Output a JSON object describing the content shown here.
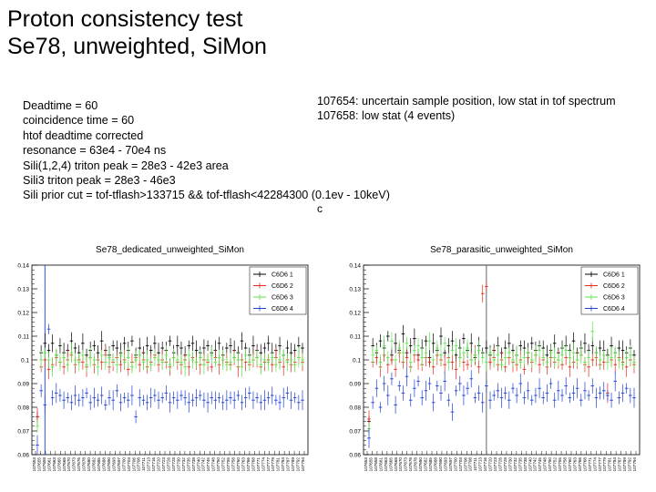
{
  "slide": {
    "title_line1": "Proton consistency test",
    "title_line2": "Se78, unweighted, SiMon",
    "notes": [
      "Deadtime = 60",
      "coincidence time = 60",
      "htof deadtime corrected",
      "resonance = 63e4 - 70e4 ns",
      "Sili(1,2,4) triton peak = 28e3 - 42e3 area",
      "Sili3 triton peak = 28e3 - 46e3",
      "Sili prior cut = tof-tflash>133715 && tof-tflash<42284300 (0.1ev - 10keV)"
    ],
    "notes_right": [
      "107654: uncertain sample position, low stat in tof spectrum",
      "107658: low stat (4 events)"
    ],
    "stray_char": "c"
  },
  "colors": {
    "C6D6 1": "#000000",
    "C6D6 2": "#e8291c",
    "C6D6 3": "#58e84a",
    "C6D6 4": "#1f3fd0"
  },
  "chart_data": [
    {
      "type": "scatter",
      "title": "Se78_dedicated_unweighted_SiMon",
      "xlabel": "",
      "ylabel": "",
      "ylim": [
        0.06,
        0.14
      ],
      "yticks": [
        "0.06",
        "0.07",
        "0.08",
        "0.09",
        "0.1",
        "0.11",
        "0.12",
        "0.13",
        "0.14"
      ],
      "categories": [
        "107653",
        "107656",
        "107658",
        "107660",
        "107662",
        "107664",
        "107666",
        "107668",
        "107670",
        "107672",
        "107674",
        "107676",
        "107678",
        "107680",
        "107682",
        "107684",
        "107686",
        "107688",
        "107690",
        "107692",
        "107694",
        "107696",
        "107698",
        "107700",
        "107702",
        "107704",
        "107706",
        "107708",
        "107710",
        "107712",
        "107714",
        "107716",
        "107718",
        "107720",
        "107722",
        "107724",
        "107726",
        "107728",
        "107730",
        "107732",
        "107734",
        "107736",
        "107738",
        "107740",
        "107742",
        "107744",
        "107746",
        "107748",
        "107750",
        "107752",
        "107754",
        "107756",
        "107758",
        "107760",
        "107762",
        "107764",
        "107766",
        "107768",
        "107770",
        "107772",
        "107774",
        "107776",
        "107778",
        "107780",
        "107782",
        "107784",
        "107786",
        "107788",
        "107790",
        "107792",
        "107794"
      ],
      "tick_labels": [
        "107653",
        "107655",
        "107658",
        "107661",
        "107663",
        "107665",
        "107668",
        "107670",
        "107673",
        "107676",
        "107678",
        "107680",
        "107682",
        "107685",
        "107688",
        "107690",
        "107693",
        "107697",
        "107700",
        "107703",
        "107706",
        "107708",
        "107711",
        "107713",
        "107716",
        "107720",
        "107723",
        "107726",
        "107728",
        "107730",
        "107732",
        "107735",
        "107738",
        "107740",
        "107742",
        "107745",
        "107748",
        "107750",
        "107752",
        "107755",
        "107758",
        "107760",
        "107763",
        "107766",
        "107768",
        "107771",
        "107774",
        "107777",
        "107779",
        "107781",
        "107784",
        "107787",
        "107789",
        "107792",
        "107794"
      ],
      "legend": [
        "C6D6 1",
        "C6D6 2",
        "C6D6 3",
        "C6D6 4"
      ],
      "legend_position": "top-right",
      "series": [
        {
          "name": "C6D6 1",
          "values": [
            0.076,
            0.103,
            0.107,
            0.104,
            0.107,
            0.102,
            0.106,
            0.103,
            0.104,
            0.108,
            0.105,
            0.103,
            0.107,
            0.102,
            0.104,
            0.106,
            0.103,
            0.108,
            0.104,
            0.102,
            0.106,
            0.105,
            0.103,
            0.107,
            0.104,
            0.108,
            0.102,
            0.105,
            0.103,
            0.106,
            0.104,
            0.107,
            0.103,
            0.105,
            0.104,
            0.108,
            0.103,
            0.106,
            0.105,
            0.102,
            0.106,
            0.107,
            0.104,
            0.103,
            0.105,
            0.106,
            0.103,
            0.104,
            0.107,
            0.102,
            0.105,
            0.106,
            0.104,
            0.103,
            0.108,
            0.105,
            0.102,
            0.106,
            0.104,
            0.103,
            0.105,
            0.107,
            0.103,
            0.104,
            0.106,
            0.102,
            0.105,
            0.103,
            0.104,
            0.106,
            0.105
          ]
        },
        {
          "name": "C6D6 2",
          "values": [
            0.076,
            0.097,
            0.1,
            0.096,
            0.098,
            0.101,
            0.099,
            0.097,
            0.1,
            0.102,
            0.098,
            0.1,
            0.099,
            0.097,
            0.101,
            0.098,
            0.1,
            0.099,
            0.102,
            0.097,
            0.099,
            0.101,
            0.098,
            0.1,
            0.096,
            0.099,
            0.101,
            0.098,
            0.1,
            0.097,
            0.099,
            0.102,
            0.098,
            0.1,
            0.099,
            0.097,
            0.101,
            0.099,
            0.098,
            0.1,
            0.097,
            0.101,
            0.099,
            0.098,
            0.1,
            0.099,
            0.097,
            0.101,
            0.098,
            0.1,
            0.099,
            0.098,
            0.101,
            0.097,
            0.1,
            0.099,
            0.098,
            0.1,
            0.101,
            0.097,
            0.099,
            0.1,
            0.098,
            0.101,
            0.099,
            0.097,
            0.1,
            0.098,
            0.099,
            0.101,
            0.099
          ]
        },
        {
          "name": "C6D6 3",
          "values": [
            0.072,
            0.1,
            0.103,
            0.1,
            0.097,
            0.102,
            0.099,
            0.101,
            0.098,
            0.103,
            0.1,
            0.099,
            0.102,
            0.098,
            0.101,
            0.1,
            0.097,
            0.102,
            0.099,
            0.101,
            0.1,
            0.098,
            0.102,
            0.099,
            0.101,
            0.097,
            0.1,
            0.102,
            0.099,
            0.1,
            0.098,
            0.101,
            0.1,
            0.099,
            0.102,
            0.098,
            0.101,
            0.1,
            0.099,
            0.097,
            0.102,
            0.1,
            0.099,
            0.101,
            0.098,
            0.1,
            0.102,
            0.099,
            0.101,
            0.1,
            0.098,
            0.099,
            0.101,
            0.1,
            0.097,
            0.102,
            0.099,
            0.1,
            0.101,
            0.098,
            0.1,
            0.099,
            0.101,
            0.098,
            0.1,
            0.102,
            0.099,
            0.1,
            0.098,
            0.101,
            0.1
          ]
        },
        {
          "name": "C6D6 4",
          "values": [
            0.064,
            0.087,
            0.081,
            0.113,
            0.084,
            0.086,
            0.085,
            0.083,
            0.084,
            0.082,
            0.085,
            0.083,
            0.084,
            0.086,
            0.082,
            0.084,
            0.083,
            0.085,
            0.081,
            0.084,
            0.083,
            0.087,
            0.082,
            0.084,
            0.083,
            0.085,
            0.076,
            0.084,
            0.083,
            0.082,
            0.084,
            0.085,
            0.083,
            0.084,
            0.086,
            0.082,
            0.084,
            0.083,
            0.085,
            0.084,
            0.082,
            0.083,
            0.084,
            0.085,
            0.083,
            0.082,
            0.084,
            0.083,
            0.084,
            0.082,
            0.083,
            0.084,
            0.083,
            0.085,
            0.082,
            0.084,
            0.086,
            0.083,
            0.084,
            0.082,
            0.083,
            0.084,
            0.085,
            0.083,
            0.082,
            0.084,
            0.086,
            0.083,
            0.084,
            0.082,
            0.083
          ]
        }
      ],
      "marker_at": "107658"
    },
    {
      "type": "scatter",
      "title": "Se78_parasitic_unweighted_SiMon",
      "xlabel": "",
      "ylabel": "",
      "ylim": [
        0.06,
        0.14
      ],
      "yticks": [
        "0.06",
        "0.07",
        "0.08",
        "0.09",
        "0.1",
        "0.11",
        "0.12",
        "0.13",
        "0.14"
      ],
      "categories": [
        "107653",
        "107656",
        "107658",
        "107660",
        "107662",
        "107664",
        "107666",
        "107668",
        "107670",
        "107672",
        "107674",
        "107676",
        "107678",
        "107680",
        "107682",
        "107684",
        "107686",
        "107688",
        "107690",
        "107692",
        "107694",
        "107696",
        "107698",
        "107700",
        "107702",
        "107704",
        "107706",
        "107708",
        "107710",
        "107712",
        "107714",
        "107716",
        "107718",
        "107720",
        "107722",
        "107724",
        "107726",
        "107728",
        "107730",
        "107732",
        "107734",
        "107736",
        "107738",
        "107740",
        "107742",
        "107744",
        "107746",
        "107748",
        "107750",
        "107752",
        "107754",
        "107756",
        "107758",
        "107760",
        "107762",
        "107764",
        "107766",
        "107768",
        "107770",
        "107772",
        "107774",
        "107776",
        "107778",
        "107780",
        "107782",
        "107784",
        "107786",
        "107788",
        "107790",
        "107792",
        "107794"
      ],
      "tick_labels": [
        "107653",
        "107655",
        "107658",
        "107661",
        "107663",
        "107665",
        "107668",
        "107670",
        "107673",
        "107676",
        "107678",
        "107680",
        "107682",
        "107685",
        "107688",
        "107690",
        "107693",
        "107697",
        "107700",
        "107703",
        "107706",
        "107708",
        "107711",
        "107713",
        "107716",
        "107720",
        "107723",
        "107726",
        "107728",
        "107730",
        "107732",
        "107735",
        "107738",
        "107740",
        "107742",
        "107745",
        "107748",
        "107750",
        "107752",
        "107755",
        "107758",
        "107760",
        "107763",
        "107766",
        "107768",
        "107771",
        "107774",
        "107777",
        "107779",
        "107781",
        "107784",
        "107787",
        "107789",
        "107792",
        "107794"
      ],
      "legend": [
        "C6D6 1",
        "C6D6 2",
        "C6D6 3",
        "C6D6 4"
      ],
      "legend_position": "top-right",
      "series": [
        {
          "name": "C6D6 1",
          "values": [
            0.074,
            0.106,
            0.103,
            0.108,
            0.105,
            0.11,
            0.102,
            0.107,
            0.104,
            0.111,
            0.103,
            0.106,
            0.109,
            0.102,
            0.105,
            0.108,
            0.101,
            0.107,
            0.104,
            0.11,
            0.103,
            0.106,
            0.108,
            0.102,
            0.105,
            0.109,
            0.104,
            0.107,
            0.101,
            0.106,
            0.103,
            0.105,
            0.102,
            0.104,
            0.106,
            0.103,
            0.105,
            0.107,
            0.104,
            0.102,
            0.106,
            0.105,
            0.103,
            0.107,
            0.104,
            0.106,
            0.105,
            0.102,
            0.104,
            0.107,
            0.103,
            0.105,
            0.106,
            0.104,
            0.108,
            0.103,
            0.105,
            0.107,
            0.104,
            0.106,
            0.103,
            0.105,
            0.104,
            0.102,
            0.106,
            0.103,
            0.105,
            0.104,
            0.103,
            0.105,
            0.102
          ]
        },
        {
          "name": "C6D6 2",
          "values": [
            0.075,
            0.099,
            0.101,
            0.097,
            0.102,
            0.098,
            0.1,
            0.096,
            0.103,
            0.099,
            0.101,
            0.097,
            0.102,
            0.1,
            0.098,
            0.101,
            0.099,
            0.097,
            0.102,
            0.1,
            0.098,
            0.101,
            0.099,
            0.096,
            0.101,
            0.099,
            0.098,
            0.1,
            0.102,
            0.097,
            0.128,
            0.131,
            0.099,
            0.101,
            0.098,
            0.1,
            0.097,
            0.101,
            0.099,
            0.098,
            0.1,
            0.096,
            0.101,
            0.099,
            0.102,
            0.098,
            0.1,
            0.097,
            0.101,
            0.099,
            0.1,
            0.098,
            0.101,
            0.097,
            0.099,
            0.1,
            0.102,
            0.098,
            0.097,
            0.1,
            0.101,
            0.098,
            0.099,
            0.086,
            0.1,
            0.098,
            0.101,
            0.099,
            0.097,
            0.1,
            0.098
          ]
        },
        {
          "name": "C6D6 3",
          "values": [
            0.071,
            0.102,
            0.104,
            0.099,
            0.106,
            0.101,
            0.108,
            0.1,
            0.105,
            0.103,
            0.107,
            0.099,
            0.104,
            0.106,
            0.101,
            0.103,
            0.108,
            0.1,
            0.105,
            0.102,
            0.107,
            0.099,
            0.104,
            0.106,
            0.101,
            0.103,
            0.105,
            0.1,
            0.102,
            0.104,
            0.101,
            0.099,
            0.103,
            0.1,
            0.102,
            0.098,
            0.101,
            0.103,
            0.1,
            0.102,
            0.099,
            0.101,
            0.103,
            0.1,
            0.102,
            0.104,
            0.101,
            0.099,
            0.103,
            0.101,
            0.1,
            0.102,
            0.104,
            0.101,
            0.103,
            0.1,
            0.102,
            0.099,
            0.101,
            0.112,
            0.103,
            0.1,
            0.102,
            0.099,
            0.101,
            0.103,
            0.1,
            0.098,
            0.101,
            0.102,
            0.099
          ]
        },
        {
          "name": "C6D6 4",
          "values": [
            0.067,
            0.082,
            0.088,
            0.08,
            0.09,
            0.085,
            0.092,
            0.081,
            0.089,
            0.086,
            0.093,
            0.083,
            0.088,
            0.091,
            0.084,
            0.087,
            0.09,
            0.082,
            0.089,
            0.086,
            0.091,
            0.083,
            0.078,
            0.087,
            0.09,
            0.085,
            0.088,
            0.092,
            0.084,
            0.086,
            0.082,
            0.089,
            0.083,
            0.085,
            0.087,
            0.084,
            0.086,
            0.083,
            0.088,
            0.085,
            0.09,
            0.084,
            0.087,
            0.083,
            0.085,
            0.088,
            0.084,
            0.086,
            0.09,
            0.083,
            0.087,
            0.085,
            0.089,
            0.084,
            0.086,
            0.088,
            0.083,
            0.087,
            0.085,
            0.089,
            0.084,
            0.086,
            0.087,
            0.085,
            0.083,
            0.091,
            0.084,
            0.086,
            0.088,
            0.085,
            0.084
          ]
        }
      ],
      "marker_at": "107716"
    }
  ]
}
